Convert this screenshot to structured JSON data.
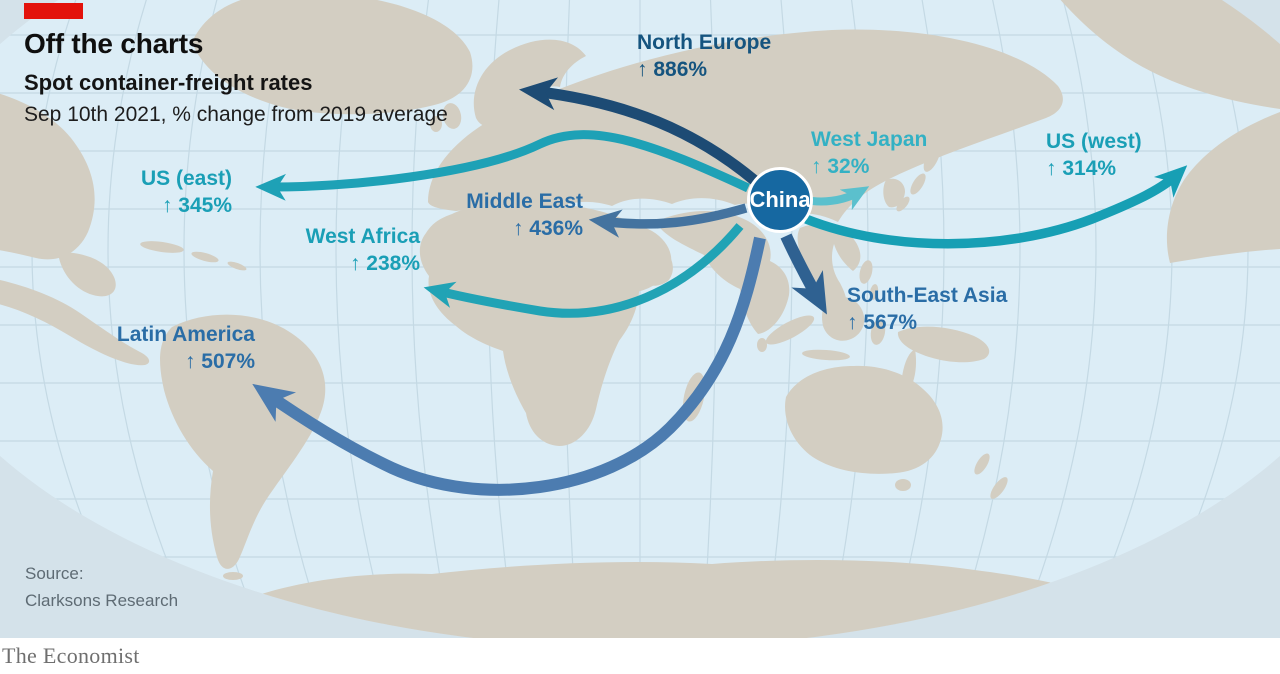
{
  "header": {
    "title": "Off the charts",
    "subtitle": "Spot container-freight rates",
    "note": "Sep 10th 2021, % change from 2019 average"
  },
  "origin": {
    "label": "China"
  },
  "routes": [
    {
      "id": "north-europe",
      "name": "North Europe",
      "change": "↑ 886%",
      "value_pct": 886,
      "label_color": "#15547F",
      "arrow_color": "#1D4B74"
    },
    {
      "id": "west-japan",
      "name": "West Japan",
      "change": "↑ 32%",
      "value_pct": 32,
      "label_color": "#33B1C4",
      "arrow_color": "#5BC0CD"
    },
    {
      "id": "us-west",
      "name": "US (west)",
      "change": "↑ 314%",
      "value_pct": 314,
      "label_color": "#1A9FB6",
      "arrow_color": "#179FB4"
    },
    {
      "id": "us-east",
      "name": "US (east)",
      "change": "↑ 345%",
      "value_pct": 345,
      "label_color": "#1A9FB6",
      "arrow_color": "#1EA1B6"
    },
    {
      "id": "middle-east",
      "name": "Middle East",
      "change": "↑ 436%",
      "value_pct": 436,
      "label_color": "#2A6DA6",
      "arrow_color": "#44739F"
    },
    {
      "id": "west-africa",
      "name": "West Africa",
      "change": "↑ 238%",
      "value_pct": 238,
      "label_color": "#1A9FB6",
      "arrow_color": "#21A3B5"
    },
    {
      "id": "se-asia",
      "name": "South-East Asia",
      "change": "↑ 567%",
      "value_pct": 567,
      "label_color": "#2A6DA6",
      "arrow_color": "#2F6191"
    },
    {
      "id": "latin-america",
      "name": "Latin America",
      "change": "↑ 507%",
      "value_pct": 507,
      "label_color": "#2A6DA6",
      "arrow_color": "#4C7CB0"
    }
  ],
  "source": {
    "line1": "Source:",
    "line2": "Clarksons Research"
  },
  "footer": {
    "brand": "The Economist"
  },
  "colors": {
    "brand_red": "#E3120B",
    "map_outer": "#D4E2EA",
    "ocean": "#DCEDF6",
    "land": "#D3CEC2",
    "graticule": "#C4D9E4",
    "origin_fill": "#1668A1"
  },
  "chart_data": {
    "type": "flow_map",
    "title": "Off the charts",
    "subtitle": "Spot container-freight rates",
    "note": "Sep 10th 2021, % change from 2019 average",
    "origin": "China",
    "unit": "% change from 2019 average",
    "categories": [
      "North Europe",
      "West Japan",
      "US (west)",
      "US (east)",
      "Middle East",
      "West Africa",
      "South-East Asia",
      "Latin America"
    ],
    "values": [
      886,
      32,
      314,
      345,
      436,
      238,
      567,
      507
    ],
    "legend": "none",
    "source": "Clarksons Research"
  }
}
